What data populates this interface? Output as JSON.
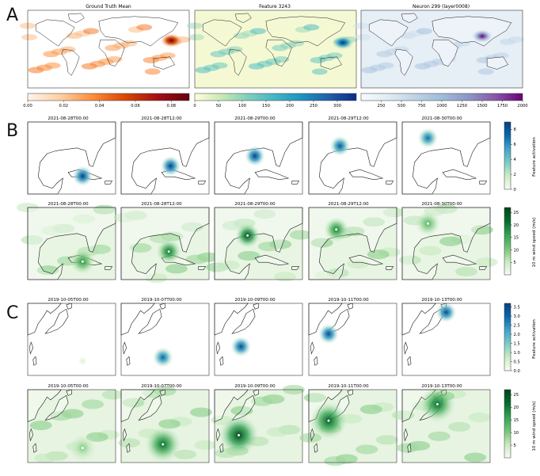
{
  "panel_letters": [
    "A",
    "B",
    "C"
  ],
  "colors": {
    "reds": [
      "#fff5eb",
      "#fdd0a2",
      "#fd8d3c",
      "#d94801",
      "#a50f15",
      "#67000d"
    ],
    "ylgnbu": [
      "#ffffd9",
      "#c7e9b4",
      "#7fcdbb",
      "#41b6c4",
      "#1d91c0",
      "#225ea8",
      "#0c2c84"
    ],
    "bupu": [
      "#f7fcfd",
      "#e0ecf4",
      "#bfd3e6",
      "#9ebcda",
      "#8c96c6",
      "#8856a7",
      "#6a0177"
    ],
    "gnbu": [
      "#f7fcf0",
      "#ccebc5",
      "#7bccc4",
      "#43a2ca",
      "#0868ac",
      "#084081"
    ],
    "greens": [
      "#f7fcf5",
      "#c7e9c0",
      "#74c476",
      "#31a354",
      "#006d2c",
      "#00441b"
    ],
    "land_outline": "#1a1a1a"
  },
  "chart_data": [
    {
      "type": "heatmap",
      "panel": "A",
      "title": "Ground Truth Mean",
      "colormap": "reds",
      "clim": [
        0,
        0.09
      ],
      "ticks": [
        "0.00",
        "0.02",
        "0.04",
        "0.06",
        "0.08"
      ],
      "hotspot": {
        "lon": 140,
        "lat": 20,
        "value": 0.09
      }
    },
    {
      "type": "heatmap",
      "panel": "A",
      "title": "Feature 3243",
      "colormap": "ylgnbu",
      "clim": [
        0,
        340
      ],
      "ticks": [
        "0",
        "50",
        "100",
        "150",
        "200",
        "250",
        "300"
      ],
      "hotspot": {
        "lon": 150,
        "lat": 15,
        "value": 320
      }
    },
    {
      "type": "heatmap",
      "panel": "A",
      "title": "Neuron 299 (layer0008)",
      "colormap": "bupu",
      "clim": [
        0,
        2000
      ],
      "ticks": [
        "250",
        "500",
        "750",
        "1000",
        "1250",
        "1500",
        "1750",
        "2000"
      ],
      "hotspot": {
        "lon": 90,
        "lat": 30,
        "value": 2000
      }
    },
    {
      "type": "heatmap",
      "panel": "B",
      "rows": [
        {
          "label": "Feature activation",
          "colormap": "gnbu",
          "clim": [
            0,
            9
          ],
          "ticks": [
            "0",
            "2",
            "4",
            "6",
            "8"
          ],
          "maps": [
            {
              "title": "2021-08-28T00:00",
              "center": [
                -83,
                21.5
              ],
              "peak": 9
            },
            {
              "title": "2021-08-28T12:00",
              "center": [
                -84.5,
                24
              ],
              "peak": 9
            },
            {
              "title": "2021-08-29T00:00",
              "center": [
                -87,
                26.5
              ],
              "peak": 9
            },
            {
              "title": "2021-08-29T12:00",
              "center": [
                -89.5,
                29
              ],
              "peak": 8
            },
            {
              "title": "2021-08-30T00:00",
              "center": [
                -91,
                31
              ],
              "peak": 7
            }
          ]
        },
        {
          "label": "10 m wind speed (m/s)",
          "colormap": "greens",
          "clim": [
            0,
            27
          ],
          "ticks": [
            "5",
            "10",
            "15",
            "20",
            "25"
          ],
          "maps": [
            {
              "title": "2021-08-28T00:00",
              "center": [
                -83,
                21.5
              ],
              "peak": 18
            },
            {
              "title": "2021-08-28T12:00",
              "center": [
                -85,
                24
              ],
              "peak": 22
            },
            {
              "title": "2021-08-29T00:00",
              "center": [
                -89,
                28
              ],
              "peak": 27
            },
            {
              "title": "2021-08-29T12:00",
              "center": [
                -90.5,
                29.5
              ],
              "peak": 20
            },
            {
              "title": "2021-08-30T00:00",
              "center": [
                -91,
                31
              ],
              "peak": 14
            }
          ]
        }
      ]
    },
    {
      "type": "heatmap",
      "panel": "C",
      "rows": [
        {
          "label": "Feature activation",
          "colormap": "gnbu",
          "clim": [
            0,
            3.7
          ],
          "ticks": [
            "0.0",
            "0.5",
            "1.0",
            "1.5",
            "2.0",
            "2.5",
            "3.0",
            "3.5"
          ],
          "maps": [
            {
              "title": "2019-10-05T00:00",
              "center": [
                150,
                13
              ],
              "peak": 0.4
            },
            {
              "title": "2019-10-07T00:00",
              "center": [
                144,
                15
              ],
              "peak": 3.0
            },
            {
              "title": "2019-10-09T00:00",
              "center": [
                137,
                21
              ],
              "peak": 3.5
            },
            {
              "title": "2019-10-11T00:00",
              "center": [
                134,
                28
              ],
              "peak": 3.5
            },
            {
              "title": "2019-10-13T00:00",
              "center": [
                145,
                40
              ],
              "peak": 3.5
            }
          ]
        },
        {
          "label": "10 m wind speed (m/s)",
          "colormap": "greens",
          "clim": [
            0,
            27
          ],
          "ticks": [
            "5",
            "10",
            "15",
            "20",
            "25"
          ],
          "maps": [
            {
              "title": "2019-10-05T00:00",
              "center": [
                150,
                13
              ],
              "peak": 10
            },
            {
              "title": "2019-10-07T00:00",
              "center": [
                144,
                15
              ],
              "peak": 22
            },
            {
              "title": "2019-10-09T00:00",
              "center": [
                136,
                20
              ],
              "peak": 27
            },
            {
              "title": "2019-10-11T00:00",
              "center": [
                134,
                28
              ],
              "peak": 24
            },
            {
              "title": "2019-10-13T00:00",
              "center": [
                141,
                37
              ],
              "peak": 22
            }
          ]
        }
      ]
    }
  ]
}
